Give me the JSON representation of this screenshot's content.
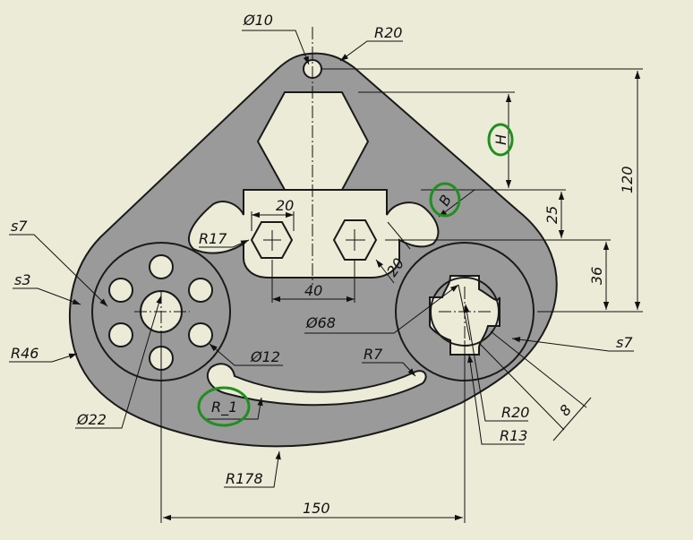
{
  "colors": {
    "background": "#ecebd7",
    "part_fill": "#9a9a9a",
    "part_stroke": "#1a1a1a",
    "line": "#111111",
    "highlight_ring": "#1f8f1f"
  },
  "labels": {
    "dia10": "Ø10",
    "r20_top": "R20",
    "h": "H",
    "b": "B",
    "dim120": "120",
    "dim25": "25",
    "dim36": "36",
    "s7_left": "s7",
    "s3": "s3",
    "r46": "R46",
    "r17": "R17",
    "dim20_top": "20",
    "dim40": "40",
    "dim20_diag": "20",
    "dia68": "Ø68",
    "dia12": "Ø12",
    "r7": "R7",
    "s7_right": "s7",
    "r20_right": "R20",
    "r13": "R13",
    "dim8": "8",
    "r1": "R_1",
    "dia22": "Ø22",
    "r178": "R178",
    "dim150": "150"
  }
}
